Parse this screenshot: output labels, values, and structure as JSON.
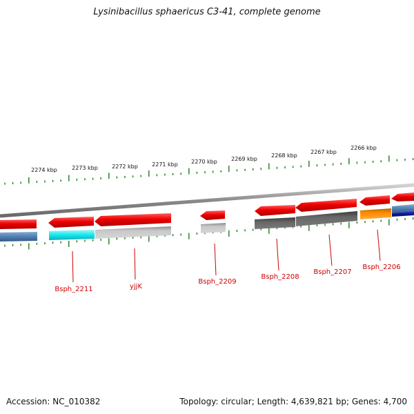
{
  "title": "Lysinibacillus sphaericus C3-41, complete genome",
  "footer": {
    "accession_label": "Accession:",
    "accession": "NC_010382",
    "topology_label": "Topology:",
    "topology": "circular",
    "length_label": "Length:",
    "length": "4,639,821 bp",
    "genes_label": "Genes:",
    "genes": "4,700"
  },
  "scale": {
    "unit": "kbp",
    "labels": [
      "2274 kbp",
      "2273 kbp",
      "2272 kbp",
      "2271 kbp",
      "2270 kbp",
      "2269 kbp",
      "2268 kbp",
      "2267 kbp",
      "2266 kbp"
    ]
  },
  "colors": {
    "backbone": "#8a8a8a",
    "tick": "#1a7a1a",
    "gene_label": "#cc0000",
    "forward": "#e80000",
    "blue": "#4f7fb3",
    "cyan": "#18e6ee",
    "light_gray": "#b8b8b8",
    "dark_gray": "#5e5e5e",
    "orange": "#ff8c00",
    "navy": "#10189a"
  },
  "genes": [
    {
      "label": "Bsph_2211"
    },
    {
      "label": "yjjK"
    },
    {
      "label": "Bsph_2209"
    },
    {
      "label": "Bsph_2208"
    },
    {
      "label": "Bsph_2207"
    },
    {
      "label": "Bsph_2206"
    }
  ]
}
